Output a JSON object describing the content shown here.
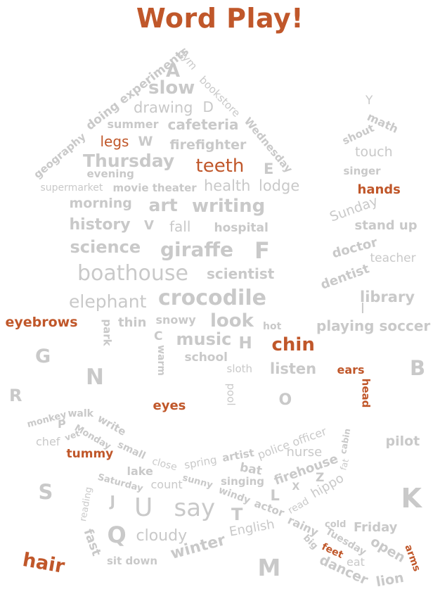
{
  "title": "Word Play!",
  "colors": {
    "accent": "#c0572a",
    "word": "#c9c9c9",
    "background": "#ffffff"
  },
  "words": [
    {
      "id": "w1",
      "text": "A",
      "hl": false
    },
    {
      "id": "w2",
      "text": "gym",
      "hl": false
    },
    {
      "id": "w3",
      "text": "slow",
      "hl": false
    },
    {
      "id": "w4",
      "text": "bookstore",
      "hl": false
    },
    {
      "id": "w5",
      "text": "doing experiments",
      "hl": false
    },
    {
      "id": "w6",
      "text": "drawing",
      "hl": false
    },
    {
      "id": "w7",
      "text": "D",
      "hl": false
    },
    {
      "id": "w8",
      "text": "summer",
      "hl": false
    },
    {
      "id": "w9",
      "text": "cafeteria",
      "hl": false
    },
    {
      "id": "w10",
      "text": "Wednesday",
      "hl": false
    },
    {
      "id": "w11",
      "text": "geography",
      "hl": false
    },
    {
      "id": "w12",
      "text": "legs",
      "hl": true
    },
    {
      "id": "w13",
      "text": "W",
      "hl": false
    },
    {
      "id": "w14",
      "text": "firefighter",
      "hl": false
    },
    {
      "id": "w15",
      "text": "Thursday",
      "hl": false
    },
    {
      "id": "w16",
      "text": "teeth",
      "hl": true
    },
    {
      "id": "w17",
      "text": "E",
      "hl": false
    },
    {
      "id": "w18",
      "text": "evening",
      "hl": false
    },
    {
      "id": "w19",
      "text": "supermarket",
      "hl": false
    },
    {
      "id": "w20",
      "text": "movie theater",
      "hl": false
    },
    {
      "id": "w21",
      "text": "health",
      "hl": false
    },
    {
      "id": "w22",
      "text": "lodge",
      "hl": false
    },
    {
      "id": "w23",
      "text": "morning",
      "hl": false
    },
    {
      "id": "w24",
      "text": "art",
      "hl": false
    },
    {
      "id": "w25",
      "text": "writing",
      "hl": false
    },
    {
      "id": "w26",
      "text": "history",
      "hl": false
    },
    {
      "id": "w27",
      "text": "V",
      "hl": false
    },
    {
      "id": "w28",
      "text": "fall",
      "hl": false
    },
    {
      "id": "w29",
      "text": "hospital",
      "hl": false
    },
    {
      "id": "w30",
      "text": "science",
      "hl": false
    },
    {
      "id": "w31",
      "text": "giraffe",
      "hl": false
    },
    {
      "id": "w32",
      "text": "F",
      "hl": false
    },
    {
      "id": "w33",
      "text": "boathouse",
      "hl": false
    },
    {
      "id": "w34",
      "text": "scientist",
      "hl": false
    },
    {
      "id": "w35",
      "text": "elephant",
      "hl": false
    },
    {
      "id": "w36",
      "text": "crocodile",
      "hl": false
    },
    {
      "id": "w37",
      "text": "eyebrows",
      "hl": true
    },
    {
      "id": "w38",
      "text": "park",
      "hl": false
    },
    {
      "id": "w39",
      "text": "thin",
      "hl": false
    },
    {
      "id": "w40",
      "text": "snowy",
      "hl": false
    },
    {
      "id": "w41",
      "text": "look",
      "hl": false
    },
    {
      "id": "w42",
      "text": "hot",
      "hl": false
    },
    {
      "id": "w43",
      "text": "C",
      "hl": false
    },
    {
      "id": "w44",
      "text": "warm",
      "hl": false
    },
    {
      "id": "w45",
      "text": "music",
      "hl": false
    },
    {
      "id": "w46",
      "text": "H",
      "hl": false
    },
    {
      "id": "w47",
      "text": "chin",
      "hl": true
    },
    {
      "id": "w48",
      "text": "school",
      "hl": false
    },
    {
      "id": "w49",
      "text": "sloth",
      "hl": false
    },
    {
      "id": "w50",
      "text": "listen",
      "hl": false
    },
    {
      "id": "w51",
      "text": "ears",
      "hl": true
    },
    {
      "id": "w52",
      "text": "head",
      "hl": true
    },
    {
      "id": "w53",
      "text": "pool",
      "hl": false
    },
    {
      "id": "w54",
      "text": "O",
      "hl": false
    },
    {
      "id": "w55",
      "text": "eyes",
      "hl": true
    },
    {
      "id": "w56",
      "text": "G",
      "hl": false
    },
    {
      "id": "w57",
      "text": "N",
      "hl": false
    },
    {
      "id": "w58",
      "text": "R",
      "hl": false
    },
    {
      "id": "w59",
      "text": "B",
      "hl": false
    },
    {
      "id": "w60",
      "text": "Y",
      "hl": false
    },
    {
      "id": "w61",
      "text": "math",
      "hl": false
    },
    {
      "id": "w62",
      "text": "shout",
      "hl": false
    },
    {
      "id": "w63",
      "text": "touch",
      "hl": false
    },
    {
      "id": "w64",
      "text": "singer",
      "hl": false
    },
    {
      "id": "w65",
      "text": "hands",
      "hl": true
    },
    {
      "id": "w66",
      "text": "Sunday",
      "hl": false
    },
    {
      "id": "w67",
      "text": "stand up",
      "hl": false
    },
    {
      "id": "w68",
      "text": "doctor",
      "hl": false
    },
    {
      "id": "w69",
      "text": "teacher",
      "hl": false
    },
    {
      "id": "w70",
      "text": "dentist",
      "hl": false
    },
    {
      "id": "w71",
      "text": "library",
      "hl": false
    },
    {
      "id": "w72",
      "text": "I",
      "hl": false
    },
    {
      "id": "w73",
      "text": "playing soccer",
      "hl": false
    },
    {
      "id": "w74",
      "text": "monkey",
      "hl": false
    },
    {
      "id": "w75",
      "text": "walk",
      "hl": false
    },
    {
      "id": "w76",
      "text": "write",
      "hl": false
    },
    {
      "id": "w77",
      "text": "P",
      "hl": false
    },
    {
      "id": "w78",
      "text": "Monday",
      "hl": false
    },
    {
      "id": "w79",
      "text": "vet",
      "hl": false
    },
    {
      "id": "w80",
      "text": "chef",
      "hl": false
    },
    {
      "id": "w81",
      "text": "small",
      "hl": false
    },
    {
      "id": "w82",
      "text": "tummy",
      "hl": true
    },
    {
      "id": "w83",
      "text": "close",
      "hl": false
    },
    {
      "id": "w84",
      "text": "lake",
      "hl": false
    },
    {
      "id": "w85",
      "text": "Saturday",
      "hl": false
    },
    {
      "id": "w86",
      "text": "count",
      "hl": false
    },
    {
      "id": "w87",
      "text": "spring",
      "hl": false
    },
    {
      "id": "w88",
      "text": "artist",
      "hl": false
    },
    {
      "id": "w89",
      "text": "police officer",
      "hl": false
    },
    {
      "id": "w90",
      "text": "nurse",
      "hl": false
    },
    {
      "id": "w91",
      "text": "cabin",
      "hl": false
    },
    {
      "id": "w92",
      "text": "pilot",
      "hl": false
    },
    {
      "id": "w93",
      "text": "bat",
      "hl": false
    },
    {
      "id": "w94",
      "text": "sunny",
      "hl": false
    },
    {
      "id": "w95",
      "text": "singing",
      "hl": false
    },
    {
      "id": "w96",
      "text": "firehouse",
      "hl": false
    },
    {
      "id": "w97",
      "text": "fat",
      "hl": false
    },
    {
      "id": "w98",
      "text": "S",
      "hl": false
    },
    {
      "id": "w99",
      "text": "windy",
      "hl": false
    },
    {
      "id": "w100",
      "text": "X",
      "hl": false
    },
    {
      "id": "w101",
      "text": "Z",
      "hl": false
    },
    {
      "id": "w102",
      "text": "hippo",
      "hl": false
    },
    {
      "id": "w103",
      "text": "L",
      "hl": false
    },
    {
      "id": "w104",
      "text": "reading",
      "hl": false
    },
    {
      "id": "w105",
      "text": "J",
      "hl": false
    },
    {
      "id": "w106",
      "text": "U",
      "hl": false
    },
    {
      "id": "w107",
      "text": "say",
      "hl": false
    },
    {
      "id": "w108",
      "text": "T",
      "hl": false
    },
    {
      "id": "w109",
      "text": "actor",
      "hl": false
    },
    {
      "id": "w110",
      "text": "read",
      "hl": false
    },
    {
      "id": "w111",
      "text": "K",
      "hl": false
    },
    {
      "id": "w112",
      "text": "Q",
      "hl": false
    },
    {
      "id": "w113",
      "text": "cloudy",
      "hl": false
    },
    {
      "id": "w114",
      "text": "English",
      "hl": false
    },
    {
      "id": "w115",
      "text": "rainy",
      "hl": false
    },
    {
      "id": "w116",
      "text": "cold",
      "hl": false
    },
    {
      "id": "w117",
      "text": "Friday",
      "hl": false
    },
    {
      "id": "w118",
      "text": "fast",
      "hl": false
    },
    {
      "id": "w119",
      "text": "winter",
      "hl": false
    },
    {
      "id": "w120",
      "text": "big",
      "hl": false
    },
    {
      "id": "w121",
      "text": "Tuesday",
      "hl": false
    },
    {
      "id": "w122",
      "text": "open",
      "hl": false
    },
    {
      "id": "w123",
      "text": "arms",
      "hl": true
    },
    {
      "id": "w124",
      "text": "feet",
      "hl": true
    },
    {
      "id": "w125",
      "text": "eat",
      "hl": false
    },
    {
      "id": "w126",
      "text": "hair",
      "hl": true
    },
    {
      "id": "w127",
      "text": "sit down",
      "hl": false
    },
    {
      "id": "w128",
      "text": "M",
      "hl": false
    },
    {
      "id": "w129",
      "text": "dancer",
      "hl": false
    },
    {
      "id": "w130",
      "text": "lion",
      "hl": false
    }
  ]
}
